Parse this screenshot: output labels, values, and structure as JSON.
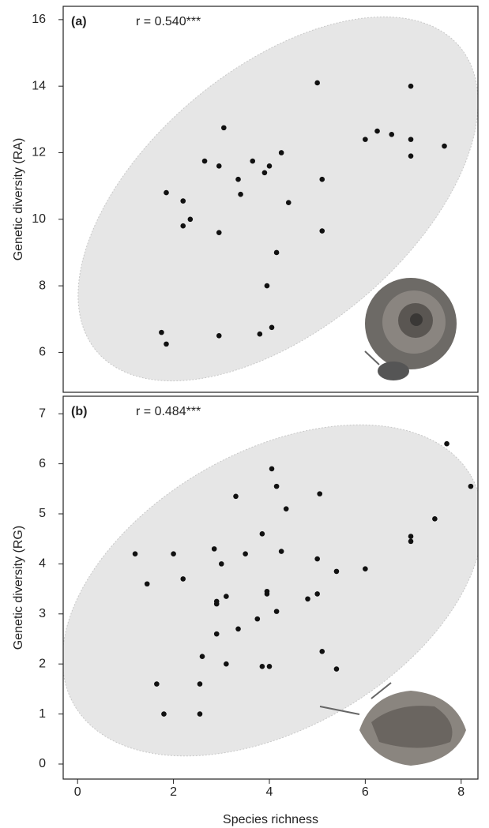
{
  "chart_data": [
    {
      "type": "scatter",
      "panel": "(a)",
      "annotation": "r = 0.540***",
      "ylabel": "Genetic diversity (RA)",
      "xlim": [
        -0.3,
        8.35
      ],
      "ylim": [
        4.8,
        16.4
      ],
      "yticks": [
        6,
        8,
        10,
        12,
        14,
        16
      ],
      "color": "#111111",
      "x": [
        1.75,
        1.85,
        1.85,
        2.2,
        2.2,
        2.35,
        2.65,
        2.95,
        2.95,
        2.95,
        3.05,
        3.35,
        3.4,
        3.65,
        3.8,
        3.9,
        3.95,
        4.0,
        4.05,
        4.15,
        4.25,
        4.4,
        5.0,
        5.1,
        5.1,
        6.0,
        6.25,
        6.55,
        6.95,
        6.95,
        6.95,
        7.65
      ],
      "values": [
        6.6,
        6.25,
        10.8,
        10.55,
        9.8,
        10.0,
        11.75,
        11.6,
        9.6,
        6.5,
        12.75,
        11.2,
        10.75,
        11.75,
        6.55,
        11.4,
        8.0,
        11.6,
        6.75,
        9.0,
        12.0,
        10.5,
        14.1,
        11.2,
        9.65,
        12.4,
        12.65,
        12.55,
        14.0,
        12.4,
        11.9,
        12.2
      ]
    },
    {
      "type": "scatter",
      "panel": "(b)",
      "annotation": "r = 0.484***",
      "ylabel": "Genetic diversity (RG)",
      "xlabel": "Species richness",
      "xlim": [
        -0.3,
        8.35
      ],
      "ylim": [
        -0.3,
        7.35
      ],
      "xticks": [
        0,
        2,
        4,
        6,
        8
      ],
      "yticks": [
        0,
        1,
        2,
        3,
        4,
        5,
        6,
        7
      ],
      "color": "#111111",
      "x": [
        1.2,
        1.45,
        1.65,
        1.8,
        2.0,
        2.2,
        2.55,
        2.55,
        2.6,
        2.85,
        2.9,
        2.9,
        2.9,
        3.0,
        3.1,
        3.1,
        3.3,
        3.35,
        3.5,
        3.75,
        3.85,
        3.85,
        3.95,
        3.95,
        4.0,
        4.05,
        4.15,
        4.15,
        4.25,
        4.35,
        4.8,
        5.0,
        5.0,
        5.05,
        5.1,
        5.4,
        5.4,
        6.0,
        6.95,
        6.95,
        7.45,
        7.7,
        8.2
      ],
      "values": [
        4.2,
        3.6,
        1.6,
        1.0,
        4.2,
        3.7,
        1.6,
        1.0,
        2.15,
        4.3,
        3.2,
        3.25,
        2.6,
        4.0,
        3.35,
        2.0,
        5.35,
        2.7,
        4.2,
        2.9,
        4.6,
        1.95,
        3.45,
        3.4,
        1.95,
        5.9,
        5.55,
        3.05,
        4.25,
        5.1,
        3.3,
        4.1,
        3.4,
        5.4,
        2.25,
        3.85,
        1.9,
        3.9,
        4.55,
        4.45,
        4.9,
        6.4,
        5.55
      ]
    }
  ]
}
